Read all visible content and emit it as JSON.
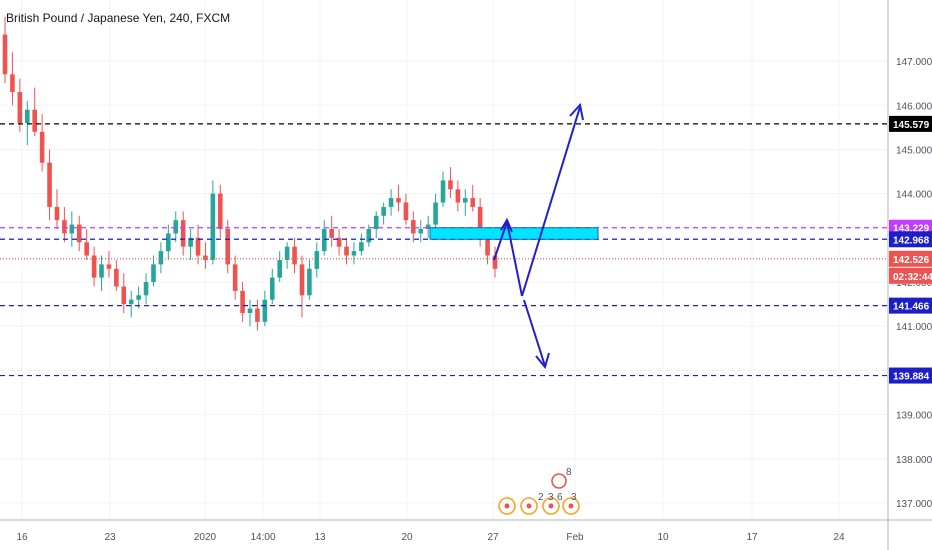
{
  "chart_data": {
    "type": "candlestick",
    "title": "British Pound / Japanese Yen, 240, FXCM",
    "ylim": [
      136.7,
      148.1
    ],
    "y_ticks": [
      "137.000",
      "138.000",
      "139.000",
      "140.000",
      "141.000",
      "142.000",
      "143.000",
      "144.000",
      "145.000",
      "146.000",
      "147.000"
    ],
    "y_tick_values": [
      137,
      138,
      139,
      140,
      141,
      142,
      143,
      144,
      145,
      146,
      147
    ],
    "x_ticks": [
      "16",
      "23",
      "2020",
      "14:00",
      "13",
      "20",
      "27",
      "Feb",
      "10",
      "17",
      "24"
    ],
    "grid": true,
    "colors": {
      "up": "#26a69a",
      "down": "#ef5350",
      "arrow": "#1f1fcf",
      "zone": "#00e5ff",
      "zone_border": "#1565c0"
    },
    "candles": [
      [
        147.6,
        148.0,
        146.5,
        146.7
      ],
      [
        146.7,
        147.2,
        146.0,
        146.3
      ],
      [
        146.3,
        146.6,
        145.4,
        145.6
      ],
      [
        145.6,
        146.1,
        145.1,
        145.9
      ],
      [
        145.9,
        146.4,
        145.3,
        145.4
      ],
      [
        145.4,
        145.8,
        144.5,
        144.7
      ],
      [
        144.7,
        145.0,
        143.4,
        143.7
      ],
      [
        143.7,
        144.1,
        143.2,
        143.4
      ],
      [
        143.4,
        143.7,
        142.9,
        143.1
      ],
      [
        143.1,
        143.6,
        142.8,
        143.3
      ],
      [
        143.3,
        143.5,
        142.7,
        142.9
      ],
      [
        142.9,
        143.2,
        142.5,
        142.6
      ],
      [
        142.6,
        142.8,
        141.9,
        142.1
      ],
      [
        142.1,
        142.6,
        141.8,
        142.4
      ],
      [
        142.4,
        142.7,
        142.1,
        142.3
      ],
      [
        142.3,
        142.5,
        141.8,
        141.9
      ],
      [
        141.9,
        142.2,
        141.3,
        141.5
      ],
      [
        141.5,
        141.8,
        141.2,
        141.6
      ],
      [
        141.6,
        141.9,
        141.4,
        141.7
      ],
      [
        141.7,
        142.2,
        141.5,
        142.0
      ],
      [
        142.0,
        142.6,
        141.9,
        142.4
      ],
      [
        142.4,
        142.9,
        142.2,
        142.7
      ],
      [
        142.7,
        143.3,
        142.5,
        143.1
      ],
      [
        143.1,
        143.6,
        142.9,
        143.4
      ],
      [
        143.4,
        143.6,
        142.6,
        142.8
      ],
      [
        142.8,
        143.2,
        142.5,
        143.0
      ],
      [
        143.0,
        143.3,
        142.4,
        142.6
      ],
      [
        142.6,
        142.9,
        142.3,
        142.5
      ],
      [
        142.5,
        144.3,
        142.4,
        144.0
      ],
      [
        144.0,
        144.2,
        143.0,
        143.2
      ],
      [
        143.2,
        143.4,
        142.2,
        142.4
      ],
      [
        142.4,
        142.6,
        141.6,
        141.8
      ],
      [
        141.8,
        142.0,
        141.1,
        141.3
      ],
      [
        141.3,
        141.6,
        141.0,
        141.4
      ],
      [
        141.4,
        141.6,
        140.9,
        141.1
      ],
      [
        141.1,
        141.8,
        141.0,
        141.6
      ],
      [
        141.6,
        142.3,
        141.5,
        142.1
      ],
      [
        142.1,
        142.7,
        142.0,
        142.5
      ],
      [
        142.5,
        142.9,
        142.3,
        142.8
      ],
      [
        142.8,
        143.0,
        142.2,
        142.4
      ],
      [
        142.4,
        142.6,
        141.2,
        141.7
      ],
      [
        141.7,
        142.5,
        141.6,
        142.3
      ],
      [
        142.3,
        142.9,
        142.1,
        142.7
      ],
      [
        142.7,
        143.4,
        142.6,
        143.2
      ],
      [
        143.2,
        143.5,
        142.8,
        143.0
      ],
      [
        143.0,
        143.2,
        142.6,
        142.8
      ],
      [
        142.8,
        143.0,
        142.4,
        142.6
      ],
      [
        142.6,
        142.9,
        142.4,
        142.7
      ],
      [
        142.7,
        143.1,
        142.6,
        142.9
      ],
      [
        142.9,
        143.3,
        142.8,
        143.2
      ],
      [
        143.2,
        143.6,
        143.0,
        143.5
      ],
      [
        143.5,
        143.8,
        143.3,
        143.7
      ],
      [
        143.7,
        144.1,
        143.5,
        143.9
      ],
      [
        143.9,
        144.2,
        143.6,
        143.8
      ],
      [
        143.8,
        144.0,
        143.3,
        143.4
      ],
      [
        143.4,
        143.6,
        142.9,
        143.1
      ],
      [
        143.1,
        143.4,
        142.9,
        143.2
      ],
      [
        143.2,
        143.5,
        143.0,
        143.3
      ],
      [
        143.3,
        144.0,
        143.2,
        143.8
      ],
      [
        143.8,
        144.5,
        143.7,
        144.3
      ],
      [
        144.3,
        144.6,
        143.9,
        144.1
      ],
      [
        144.1,
        144.3,
        143.6,
        143.8
      ],
      [
        143.8,
        144.1,
        143.5,
        143.9
      ],
      [
        143.9,
        144.2,
        143.6,
        143.7
      ],
      [
        143.7,
        143.9,
        142.8,
        143.0
      ],
      [
        143.0,
        143.2,
        142.4,
        142.6
      ],
      [
        142.6,
        142.8,
        142.1,
        142.3
      ]
    ],
    "levels": [
      {
        "value": 145.579,
        "label": "145.579",
        "color": "#000000",
        "text_color": "#ffffff",
        "style": "dashed"
      },
      {
        "value": 143.229,
        "label": "143.229",
        "color": "#c13cff",
        "text_color": "#ffffff",
        "style": "dashed"
      },
      {
        "value": 142.968,
        "label": "142.968",
        "color": "#1e1ec8",
        "text_color": "#ffffff",
        "style": "dashed"
      },
      {
        "value": 142.526,
        "label": "142.526",
        "color": "#ef5350",
        "text_color": "#ffffff",
        "style": "dotted"
      },
      {
        "value": 141.466,
        "label": "141.466",
        "color": "#1e1ec8",
        "text_color": "#ffffff",
        "style": "dashed"
      },
      {
        "value": 139.884,
        "label": "139.884",
        "color": "#1e1ec8",
        "text_color": "#ffffff",
        "style": "dashed"
      }
    ],
    "countdown": "02:32:44",
    "zone": {
      "top": 143.229,
      "bottom": 142.968
    },
    "event_markers": [
      "2",
      "3",
      "6",
      "3",
      "8"
    ]
  }
}
